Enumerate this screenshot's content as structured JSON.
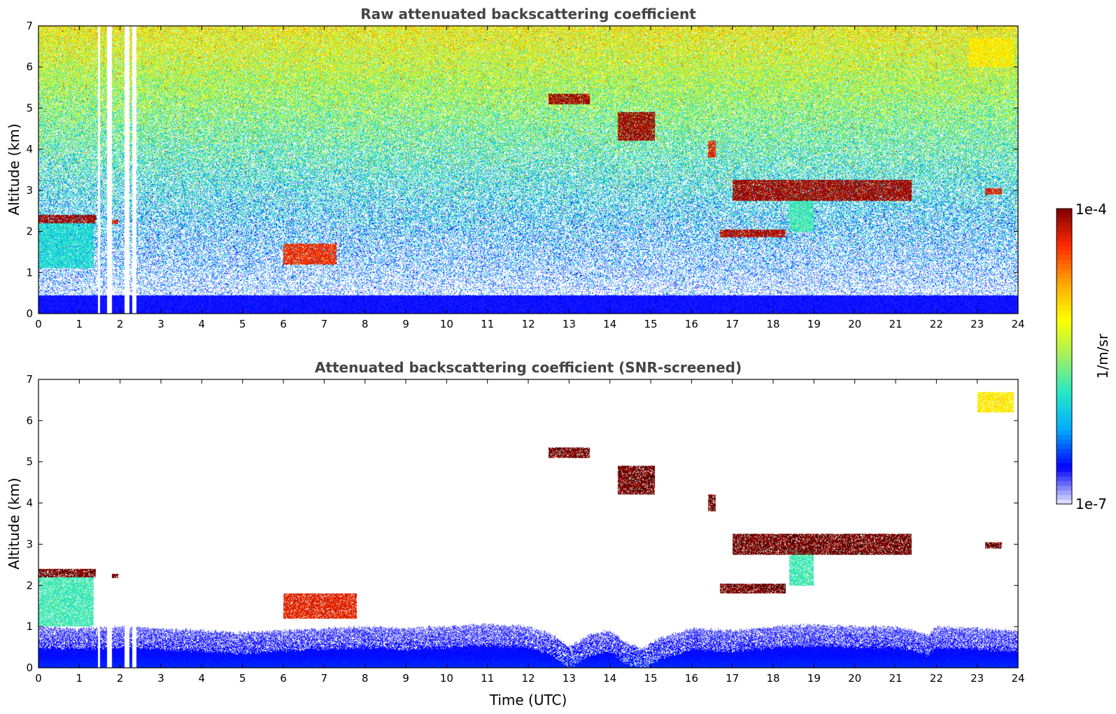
{
  "chart_data": [
    {
      "type": "heatmap",
      "title": "Raw attenuated backscattering coefficient",
      "xlabel": "",
      "ylabel": "Altitude (km)",
      "xlim": [
        0,
        24
      ],
      "ylim": [
        0,
        7
      ],
      "xticks": [
        0,
        1,
        2,
        3,
        4,
        5,
        6,
        7,
        8,
        9,
        10,
        11,
        12,
        13,
        14,
        15,
        16,
        17,
        18,
        19,
        20,
        21,
        22,
        23,
        24
      ],
      "yticks": [
        0,
        1,
        2,
        3,
        4,
        5,
        6,
        7
      ],
      "background": {
        "description": "noisy signal increasing with altitude",
        "low_altitude_km": [
          0,
          0.5
        ],
        "low_level": 0.08
      },
      "data_gaps_utc": [
        [
          1.45,
          1.5
        ],
        [
          1.68,
          1.8
        ],
        [
          2.1,
          2.22
        ],
        [
          2.3,
          2.4
        ]
      ],
      "features": [
        {
          "name": "low cloud layer",
          "t": [
            0,
            1.4
          ],
          "alt": [
            2.2,
            2.4
          ],
          "level": 0.97
        },
        {
          "name": "aerosol below cloud",
          "t": [
            0,
            1.35
          ],
          "alt": [
            1.1,
            2.2
          ],
          "level": 0.35
        },
        {
          "name": "small cloud",
          "t": [
            1.8,
            1.95
          ],
          "alt": [
            2.18,
            2.28
          ],
          "level": 0.9
        },
        {
          "name": "low clouds",
          "t": [
            6.0,
            7.3
          ],
          "alt": [
            1.2,
            1.7
          ],
          "level": 0.88
        },
        {
          "name": "mid cloud",
          "t": [
            12.5,
            13.5
          ],
          "alt": [
            5.1,
            5.35
          ],
          "level": 0.97
        },
        {
          "name": "mid cloud descending",
          "t": [
            14.2,
            15.1
          ],
          "alt": [
            4.2,
            4.9
          ],
          "level": 0.97
        },
        {
          "name": "small mid cloud",
          "t": [
            16.4,
            16.6
          ],
          "alt": [
            3.8,
            4.2
          ],
          "level": 0.9
        },
        {
          "name": "mid cloud layer",
          "t": [
            17.0,
            21.4
          ],
          "alt": [
            2.75,
            3.25
          ],
          "level": 0.97
        },
        {
          "name": "virga",
          "t": [
            18.4,
            19.0
          ],
          "alt": [
            2.0,
            2.9
          ],
          "level": 0.4
        },
        {
          "name": "lower layer",
          "t": [
            16.7,
            18.3
          ],
          "alt": [
            1.85,
            2.05
          ],
          "level": 0.95
        },
        {
          "name": "small cloud",
          "t": [
            23.2,
            23.6
          ],
          "alt": [
            2.9,
            3.05
          ],
          "level": 0.9
        },
        {
          "name": "high aerosol",
          "t": [
            22.8,
            23.9
          ],
          "alt": [
            6.0,
            6.7
          ],
          "level": 0.65
        }
      ]
    },
    {
      "type": "heatmap",
      "title": "Attenuated backscattering coefficient (SNR-screened)",
      "xlabel": "Time (UTC)",
      "ylabel": "Altitude (km)",
      "xlim": [
        0,
        24
      ],
      "ylim": [
        0,
        7
      ],
      "xticks": [
        0,
        1,
        2,
        3,
        4,
        5,
        6,
        7,
        8,
        9,
        10,
        11,
        12,
        13,
        14,
        15,
        16,
        17,
        18,
        19,
        20,
        21,
        22,
        23,
        24
      ],
      "yticks": [
        0,
        1,
        2,
        3,
        4,
        5,
        6,
        7
      ],
      "boundary_layer_top_km": [
        [
          0,
          1.0
        ],
        [
          1,
          0.95
        ],
        [
          2,
          1.0
        ],
        [
          3,
          0.95
        ],
        [
          4,
          0.9
        ],
        [
          5,
          0.85
        ],
        [
          6,
          0.9
        ],
        [
          7,
          0.95
        ],
        [
          8,
          1.0
        ],
        [
          9,
          0.95
        ],
        [
          10,
          1.0
        ],
        [
          11,
          1.05
        ],
        [
          12,
          1.0
        ],
        [
          12.6,
          0.8
        ],
        [
          13,
          0.5
        ],
        [
          13.5,
          0.8
        ],
        [
          14,
          0.9
        ],
        [
          14.4,
          0.6
        ],
        [
          14.8,
          0.45
        ],
        [
          15.2,
          0.7
        ],
        [
          16,
          0.95
        ],
        [
          17,
          0.9
        ],
        [
          18,
          1.0
        ],
        [
          19,
          1.05
        ],
        [
          20,
          1.0
        ],
        [
          21,
          1.0
        ],
        [
          21.8,
          0.8
        ],
        [
          22,
          1.0
        ],
        [
          23,
          0.95
        ],
        [
          24,
          0.9
        ]
      ],
      "features": [
        {
          "name": "low cloud layer",
          "t": [
            0,
            1.4
          ],
          "alt": [
            2.2,
            2.4
          ],
          "level": 1.0
        },
        {
          "name": "aerosol below cloud",
          "t": [
            0,
            1.35
          ],
          "alt": [
            1.0,
            2.2
          ],
          "level": 0.4
        },
        {
          "name": "small cloud",
          "t": [
            1.8,
            1.95
          ],
          "alt": [
            2.18,
            2.28
          ],
          "level": 1.0
        },
        {
          "name": "low clouds",
          "t": [
            6.0,
            7.8
          ],
          "alt": [
            1.2,
            1.8
          ],
          "level": 0.9
        },
        {
          "name": "mid cloud",
          "t": [
            12.5,
            13.5
          ],
          "alt": [
            5.1,
            5.35
          ],
          "level": 1.0
        },
        {
          "name": "mid cloud descending",
          "t": [
            14.2,
            15.1
          ],
          "alt": [
            4.2,
            4.9
          ],
          "level": 1.0
        },
        {
          "name": "small mid cloud",
          "t": [
            16.4,
            16.6
          ],
          "alt": [
            3.8,
            4.2
          ],
          "level": 1.0
        },
        {
          "name": "mid cloud layer",
          "t": [
            17.0,
            21.4
          ],
          "alt": [
            2.75,
            3.25
          ],
          "level": 1.0
        },
        {
          "name": "virga",
          "t": [
            18.4,
            19.0
          ],
          "alt": [
            2.0,
            2.9
          ],
          "level": 0.4
        },
        {
          "name": "lower layer",
          "t": [
            16.7,
            18.3
          ],
          "alt": [
            1.8,
            2.05
          ],
          "level": 1.0
        },
        {
          "name": "small cloud",
          "t": [
            23.2,
            23.6
          ],
          "alt": [
            2.9,
            3.05
          ],
          "level": 1.0
        },
        {
          "name": "high aerosol",
          "t": [
            23.0,
            23.9
          ],
          "alt": [
            6.2,
            6.7
          ],
          "level": 0.65
        }
      ]
    }
  ],
  "colorbar": {
    "label": "1/m/sr",
    "max_label": "1e-4",
    "min_label": "1e-7",
    "colormap": [
      "#eaeaff",
      "#0000ff",
      "#00aaff",
      "#22e8c8",
      "#a0f060",
      "#ffff00",
      "#ffa500",
      "#ff2a00",
      "#800000"
    ]
  }
}
